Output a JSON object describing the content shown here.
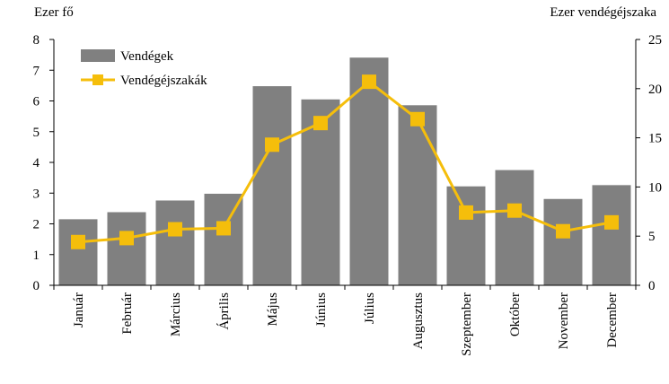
{
  "chart_data": {
    "type": "bar+line",
    "categories": [
      "Január",
      "Február",
      "Március",
      "Április",
      "Május",
      "Június",
      "Július",
      "Augusztus",
      "Szeptember",
      "Október",
      "November",
      "December"
    ],
    "series": [
      {
        "name": "Vendégek",
        "type": "bar",
        "axis": "left",
        "color": "#808080",
        "values": [
          2.15,
          2.38,
          2.76,
          2.98,
          6.48,
          6.05,
          7.41,
          5.86,
          3.22,
          3.75,
          2.81,
          3.26
        ]
      },
      {
        "name": "Vendégéjszakák",
        "type": "line",
        "marker": "square",
        "axis": "right",
        "color": "#F5BE0B",
        "values": [
          4.4,
          4.8,
          5.7,
          5.8,
          14.3,
          16.5,
          20.7,
          16.9,
          7.4,
          7.6,
          5.5,
          6.4
        ]
      }
    ],
    "y_left": {
      "label": "Ezer fő",
      "ylim": [
        0,
        8
      ],
      "ticks": [
        0,
        1,
        2,
        3,
        4,
        5,
        6,
        7,
        8
      ]
    },
    "y_right": {
      "label": "Ezer vendégéjszaka",
      "ylim": [
        0,
        25
      ],
      "ticks": [
        0,
        5,
        10,
        15,
        20,
        25
      ]
    },
    "legend_position": "top-left",
    "grid": false
  }
}
